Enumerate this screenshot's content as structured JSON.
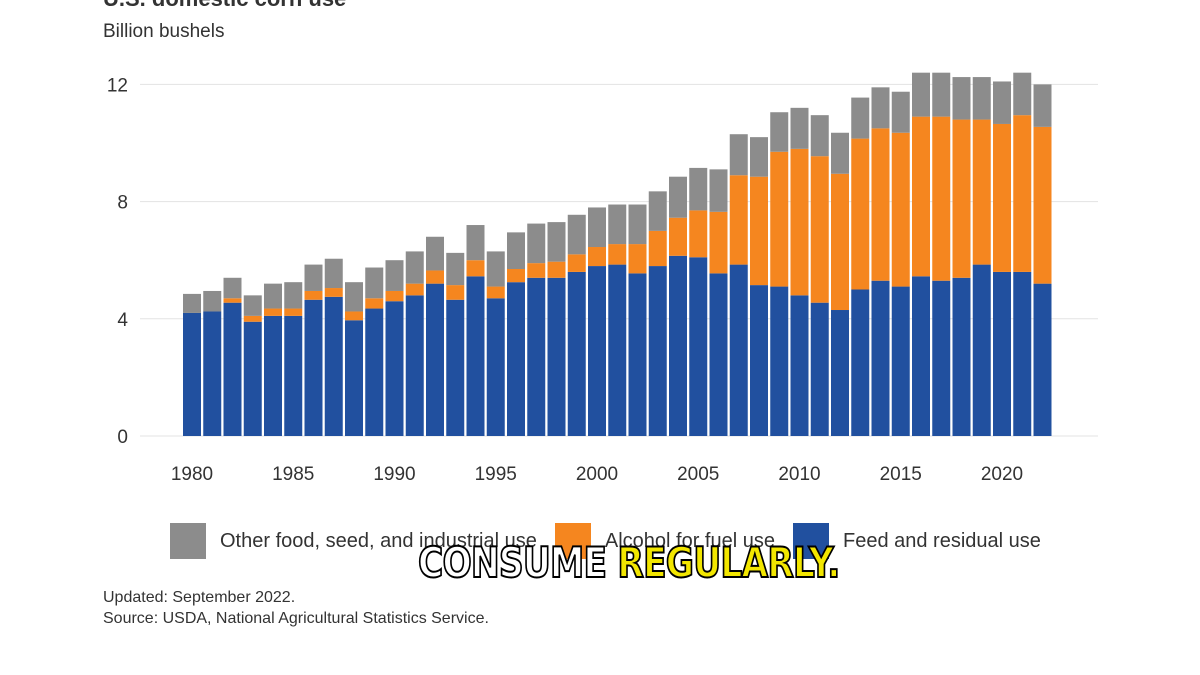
{
  "title": "U.S. domestic corn use",
  "unit_label": "Billion bushels",
  "legend": [
    {
      "label": "Other food, seed, and industrial use",
      "color": "#8c8c8c",
      "icon": "gray-square"
    },
    {
      "label": "Alcohol for fuel use",
      "color": "#f5861f",
      "icon": "orange-square"
    },
    {
      "label": "Feed and residual use",
      "color": "#21509f",
      "icon": "blue-square"
    }
  ],
  "footer": {
    "updated": "Updated: September 2022.",
    "source": "Source: USDA, National Agricultural Statistics Service."
  },
  "caption": {
    "word1": "CONSUME",
    "word2": "REGULARLY."
  },
  "chart_data": {
    "type": "bar",
    "stacked": true,
    "ylabel": "Billion bushels",
    "ylim": [
      0,
      12.5
    ],
    "yticks": [
      0,
      4,
      8,
      12
    ],
    "xticks": [
      "1980",
      "1985",
      "1990",
      "1995",
      "2000",
      "2005",
      "2010",
      "2015",
      "2020"
    ],
    "categories": [
      "1980",
      "1981",
      "1982",
      "1983",
      "1984",
      "1985",
      "1986",
      "1987",
      "1988",
      "1989",
      "1990",
      "1991",
      "1992",
      "1993",
      "1994",
      "1995",
      "1996",
      "1997",
      "1998",
      "1999",
      "2000",
      "2001",
      "2002",
      "2003",
      "2004",
      "2005",
      "2006",
      "2007",
      "2008",
      "2009",
      "2010",
      "2011",
      "2012",
      "2013",
      "2014",
      "2015",
      "2016",
      "2017",
      "2018",
      "2019",
      "2020",
      "2021",
      "2022"
    ],
    "grid": true,
    "legend_position": "bottom",
    "series": [
      {
        "name": "Feed and residual use",
        "color": "#21509f",
        "values": [
          4.2,
          4.25,
          4.55,
          3.9,
          4.1,
          4.1,
          4.65,
          4.75,
          3.95,
          4.35,
          4.6,
          4.8,
          5.2,
          4.65,
          5.45,
          4.7,
          5.25,
          5.4,
          5.4,
          5.6,
          5.8,
          5.85,
          5.55,
          5.8,
          6.15,
          6.1,
          5.55,
          5.85,
          5.15,
          5.1,
          4.8,
          4.55,
          4.3,
          5.0,
          5.3,
          5.1,
          5.45,
          5.3,
          5.4,
          5.85,
          5.6,
          5.6,
          5.2
        ]
      },
      {
        "name": "Alcohol for fuel use",
        "color": "#f5861f",
        "values": [
          0.0,
          0.0,
          0.15,
          0.2,
          0.25,
          0.25,
          0.3,
          0.3,
          0.3,
          0.35,
          0.35,
          0.4,
          0.45,
          0.5,
          0.55,
          0.4,
          0.45,
          0.5,
          0.55,
          0.6,
          0.65,
          0.7,
          1.0,
          1.2,
          1.3,
          1.6,
          2.1,
          3.05,
          3.7,
          4.6,
          5.0,
          5.0,
          4.65,
          5.15,
          5.2,
          5.25,
          5.45,
          5.6,
          5.4,
          4.95,
          5.05,
          5.35,
          5.35
        ]
      },
      {
        "name": "Other food, seed, and industrial use",
        "color": "#8c8c8c",
        "values": [
          0.65,
          0.7,
          0.7,
          0.7,
          0.85,
          0.9,
          0.9,
          1.0,
          1.0,
          1.05,
          1.05,
          1.1,
          1.15,
          1.1,
          1.2,
          1.2,
          1.25,
          1.35,
          1.35,
          1.35,
          1.35,
          1.35,
          1.35,
          1.35,
          1.4,
          1.45,
          1.45,
          1.4,
          1.35,
          1.35,
          1.4,
          1.4,
          1.4,
          1.4,
          1.4,
          1.4,
          1.5,
          1.5,
          1.45,
          1.45,
          1.45,
          1.45,
          1.45
        ]
      }
    ]
  }
}
